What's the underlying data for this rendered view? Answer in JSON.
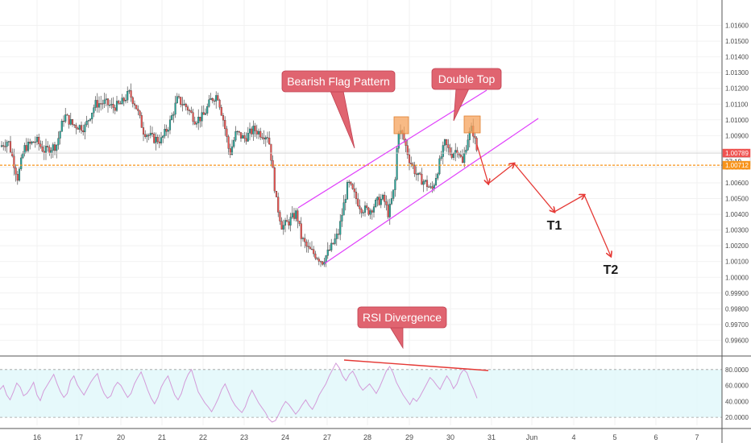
{
  "chart_data": [
    {
      "type": "candlestick",
      "ylim": [
        0.9955,
        1.017
      ],
      "y_ticks": [
        "1.01600",
        "1.01500",
        "1.01400",
        "1.01300",
        "1.01200",
        "1.01100",
        "1.01000",
        "1.00900",
        "1.00800",
        "1.00700",
        "1.00600",
        "1.00500",
        "1.00400",
        "1.00300",
        "1.00200",
        "1.00100",
        "1.00000",
        "0.99900",
        "0.99800",
        "0.99700",
        "0.99600"
      ],
      "y_tick_values": [
        1.016,
        1.015,
        1.014,
        1.013,
        1.012,
        1.011,
        1.01,
        1.009,
        1.008,
        1.007,
        1.006,
        1.005,
        1.004,
        1.003,
        1.002,
        1.001,
        1.0,
        0.999,
        0.998,
        0.997,
        0.996
      ],
      "x_ticks": [
        "16",
        "17",
        "20",
        "21",
        "22",
        "23",
        "24",
        "27",
        "28",
        "29",
        "30",
        "31",
        "Jun",
        "4",
        "5",
        "6",
        "7"
      ],
      "price_tags": [
        {
          "label": "1.00789",
          "value": 1.00789,
          "color": "#ef5350"
        },
        {
          "label": "27:19",
          "value": 1.00735,
          "color": "#ffffff"
        },
        {
          "label": "1.00712",
          "value": 1.00712,
          "color": "#f7931a"
        }
      ],
      "horizontal_line": {
        "value": 1.00712,
        "color": "#f7931a",
        "style": "dashed"
      },
      "annotations": [
        {
          "type": "callout",
          "text": "Bearish Flag Pattern",
          "color": "#e06470"
        },
        {
          "type": "callout",
          "text": "Double Top",
          "color": "#e06470"
        },
        {
          "type": "target",
          "text": "T1"
        },
        {
          "type": "target",
          "text": "T2"
        }
      ],
      "colors": {
        "up": "#26a69a",
        "down": "#ef5350",
        "channel": "#e040fb",
        "projection": "#e53935",
        "highlight": "#f5a35c"
      }
    },
    {
      "type": "line",
      "title": "RSI Divergence",
      "ylim": [
        10,
        95
      ],
      "y_ticks": [
        "80.0000",
        "60.0000",
        "40.0000",
        "20.0000"
      ],
      "y_tick_values": [
        80,
        60,
        40,
        20
      ],
      "band": [
        20,
        80
      ],
      "series": [
        {
          "values": [
            55,
            60,
            48,
            42,
            52,
            63,
            58,
            47,
            50,
            56,
            64,
            48,
            41,
            53,
            60,
            67,
            74,
            62,
            52,
            45,
            50,
            66,
            72,
            61,
            54,
            48,
            56,
            64,
            70,
            75,
            60,
            50,
            44,
            47,
            58,
            64,
            60,
            52,
            45,
            50,
            62,
            70,
            77,
            66,
            54,
            44,
            37,
            45,
            58,
            66,
            72,
            60,
            48,
            42,
            50,
            64,
            74,
            80,
            66,
            52,
            45,
            38,
            33,
            27,
            35,
            44,
            55,
            62,
            52,
            42,
            35,
            30,
            26,
            33,
            45,
            54,
            46,
            38,
            32,
            26,
            18,
            14,
            16,
            24,
            33,
            40,
            36,
            30,
            24,
            29,
            36,
            42,
            35,
            30,
            38,
            48,
            55,
            62,
            72,
            80,
            88,
            82,
            72,
            66,
            74,
            78,
            70,
            60,
            54,
            58,
            62,
            56,
            50,
            58,
            68,
            78,
            84,
            76,
            64,
            56,
            48,
            42,
            36,
            44,
            40,
            46,
            54,
            62,
            70,
            66,
            60,
            55,
            64,
            72,
            66,
            56,
            62,
            74,
            80,
            76,
            64,
            55,
            44
          ]
        }
      ]
    }
  ]
}
